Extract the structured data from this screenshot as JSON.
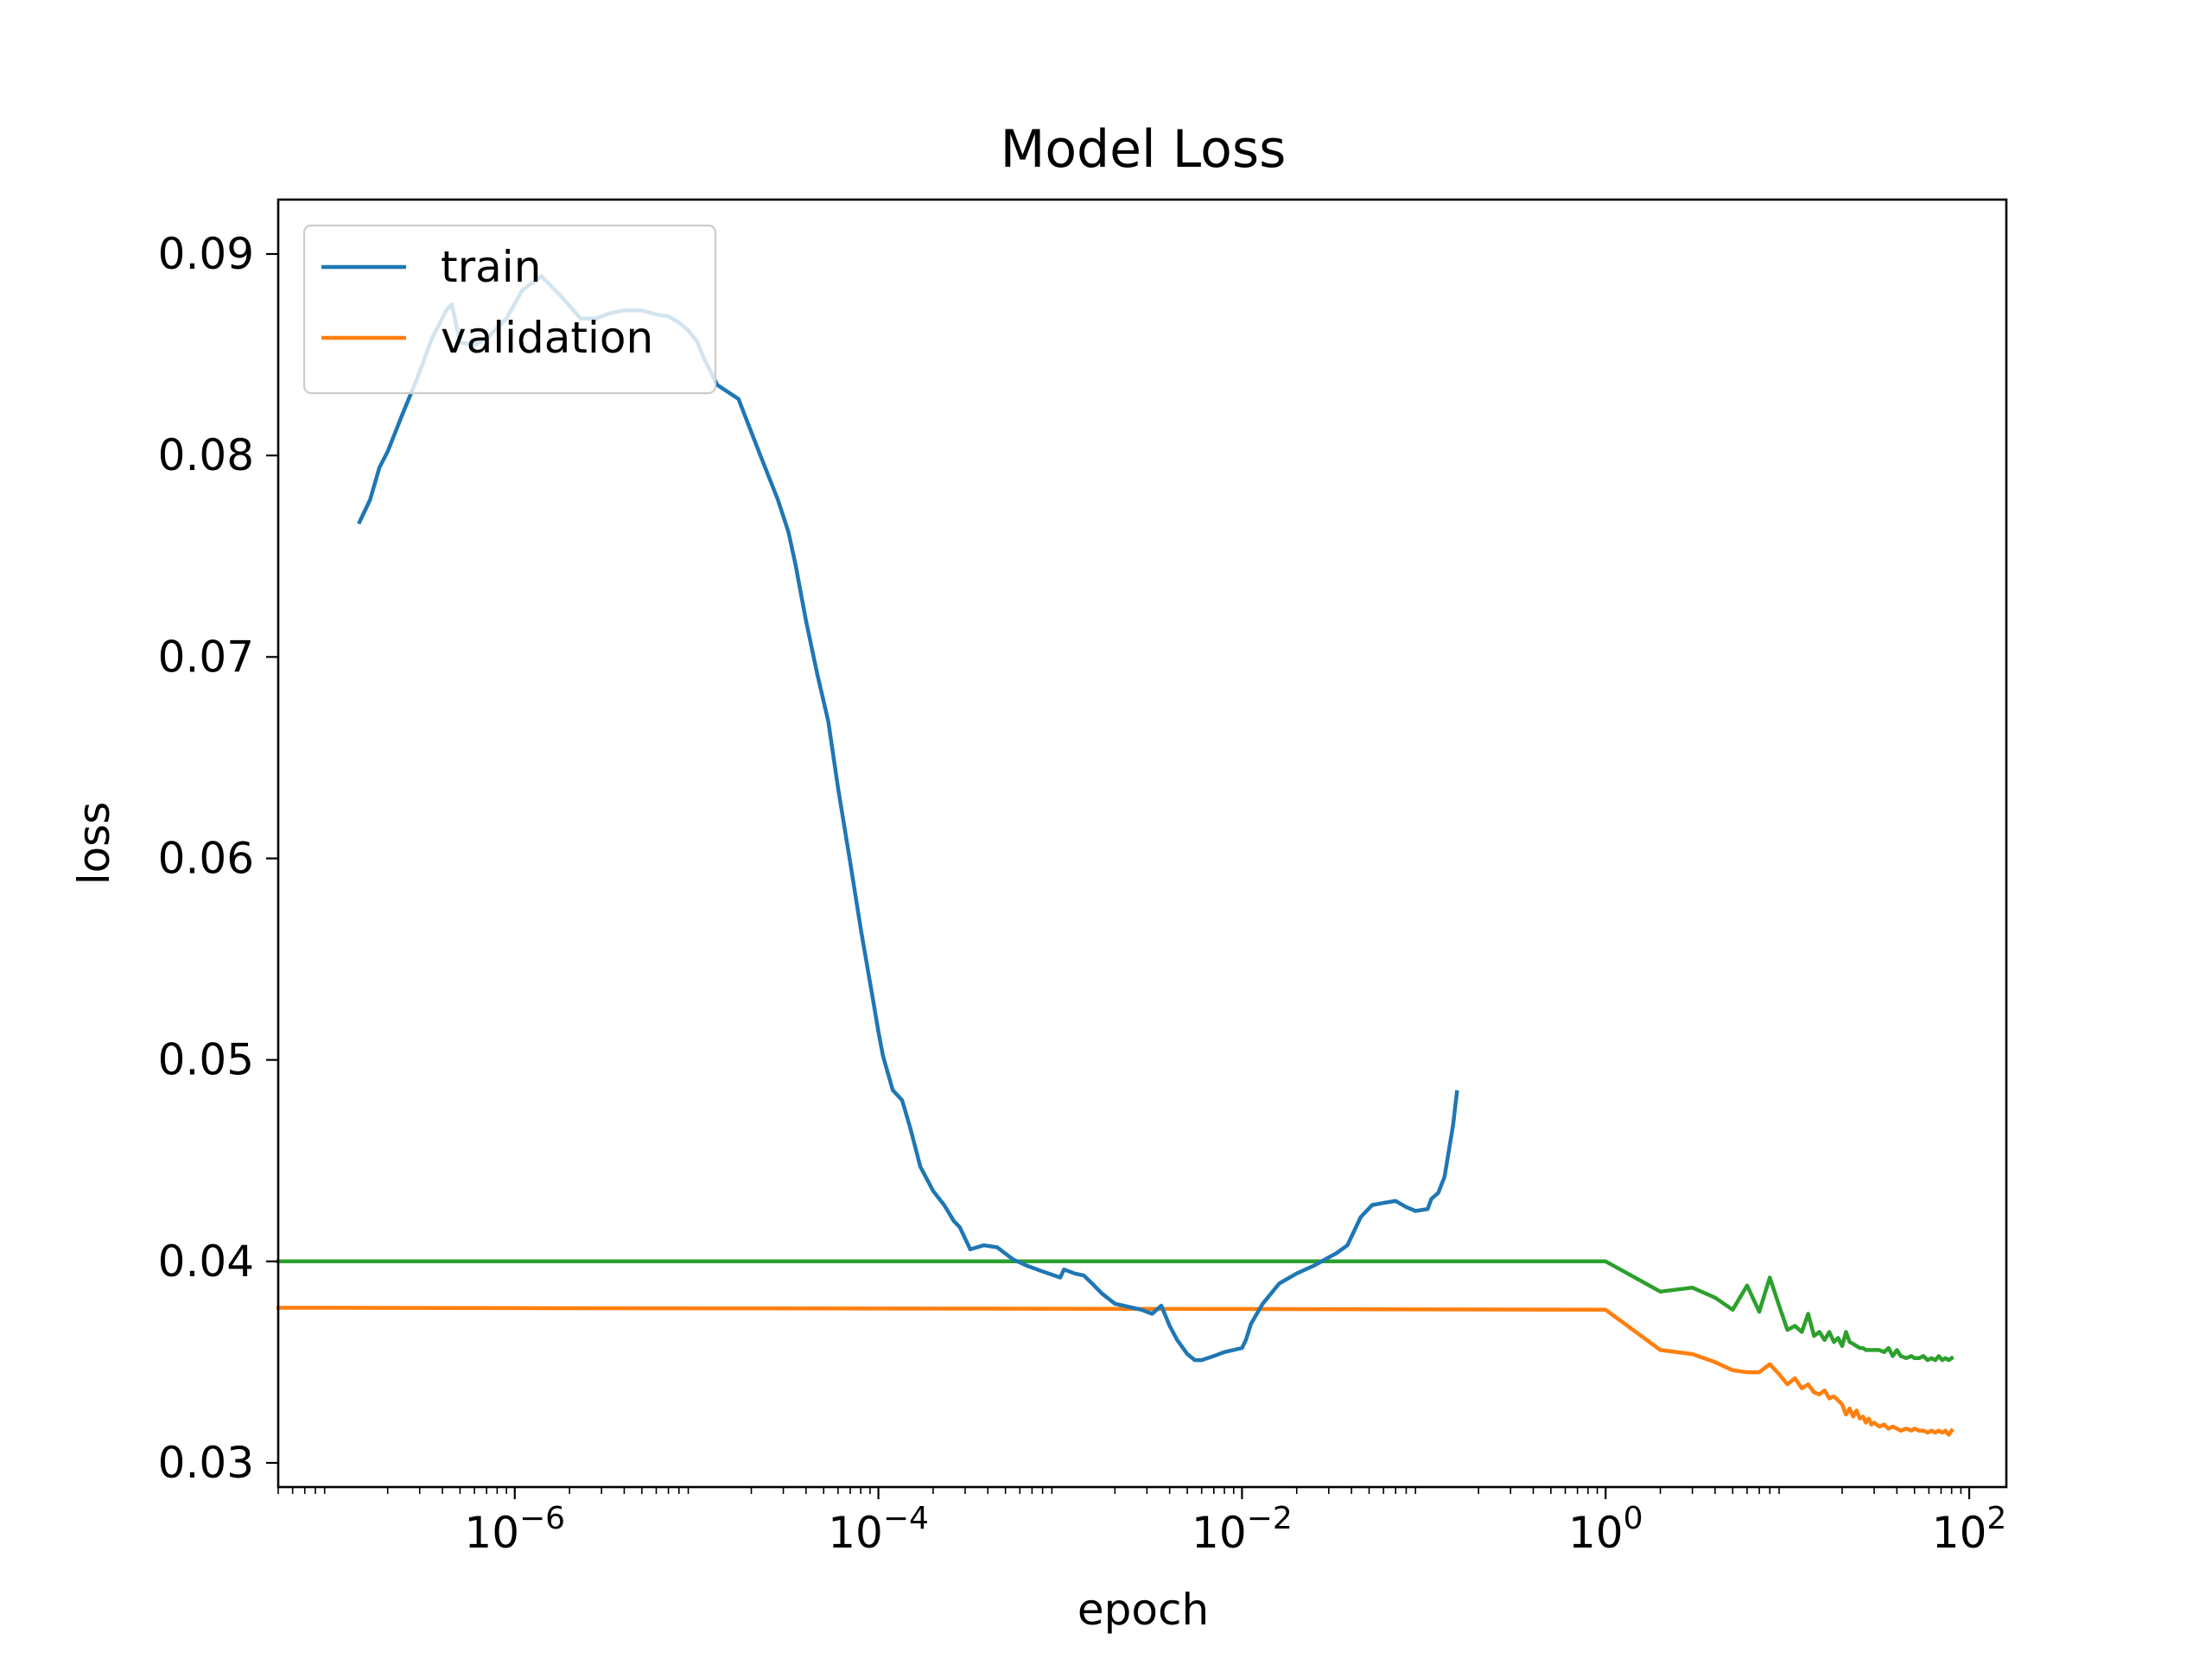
{
  "chart_data": {
    "type": "line",
    "title": "Model Loss",
    "xlabel": "epoch",
    "ylabel": "loss",
    "xscale": "log",
    "xlim": [
      5e-08,
      160
    ],
    "ylim": [
      0.0288,
      0.0927
    ],
    "xticks": [
      {
        "value": 1e-06,
        "base": "10",
        "exp": "−6"
      },
      {
        "value": 0.0001,
        "base": "10",
        "exp": "−4"
      },
      {
        "value": 0.01,
        "base": "10",
        "exp": "−2"
      },
      {
        "value": 1,
        "base": "10",
        "exp": "0"
      },
      {
        "value": 100,
        "base": "10",
        "exp": "2"
      }
    ],
    "yticks": [
      {
        "value": 0.03,
        "label": "0.03"
      },
      {
        "value": 0.04,
        "label": "0.04"
      },
      {
        "value": 0.05,
        "label": "0.05"
      },
      {
        "value": 0.06,
        "label": "0.06"
      },
      {
        "value": 0.07,
        "label": "0.07"
      },
      {
        "value": 0.08,
        "label": "0.08"
      },
      {
        "value": 0.09,
        "label": "0.09"
      }
    ],
    "grid": false,
    "legend": {
      "position": "upper left"
    },
    "series": [
      {
        "name": "train",
        "color": "#1f77b4",
        "in_legend": true,
        "x": [
          1.4e-07,
          1.6e-07,
          1.8e-07,
          2e-07,
          2.4e-07,
          2.9e-07,
          3.5e-07,
          4.2e-07,
          4.5e-07,
          5e-07,
          6e-07,
          7e-07,
          9e-07,
          1.1e-06,
          1.4e-06,
          1.8e-06,
          2.3e-06,
          2.8e-06,
          3.2e-06,
          3.5e-06,
          4e-06,
          5e-06,
          6e-06,
          7e-06,
          8e-06,
          9e-06,
          1e-05,
          1.1e-05,
          1.3e-05,
          1.7e-05,
          2.2e-05,
          2.8e-05,
          3.2e-05,
          3.5e-05,
          4e-05,
          4.6e-05,
          5.3e-05,
          6e-05,
          7e-05,
          8e-05,
          9.5e-05,
          0.0001,
          0.000106,
          0.00012,
          0.000135,
          0.00015,
          0.00017,
          0.0002,
          0.00023,
          0.00026,
          0.00028,
          0.00032,
          0.00038,
          0.00045,
          0.00055,
          0.00065,
          0.0008,
          0.001,
          0.00105,
          0.0012,
          0.00135,
          0.0015,
          0.0017,
          0.002,
          0.0025,
          0.0028,
          0.0032,
          0.0036,
          0.004,
          0.0044,
          0.005,
          0.0055,
          0.006,
          0.007,
          0.008,
          0.01,
          0.0105,
          0.0112,
          0.013,
          0.016,
          0.02,
          0.025,
          0.03,
          0.033,
          0.038,
          0.045,
          0.052,
          0.06,
          0.07,
          0.08,
          0.09,
          0.105,
          0.11,
          0.12,
          0.13,
          0.138,
          0.145,
          0.152
        ],
        "y": [
          0.0767,
          0.0778,
          0.0794,
          0.0802,
          0.082,
          0.0838,
          0.0858,
          0.0872,
          0.0875,
          0.0856,
          0.0855,
          0.0858,
          0.0868,
          0.0882,
          0.0889,
          0.0879,
          0.0868,
          0.0868,
          0.087,
          0.0871,
          0.0872,
          0.0872,
          0.087,
          0.0869,
          0.0866,
          0.0862,
          0.0857,
          0.0848,
          0.0835,
          0.0828,
          0.0802,
          0.0778,
          0.0762,
          0.0746,
          0.0718,
          0.0692,
          0.0668,
          0.0635,
          0.0598,
          0.0565,
          0.0526,
          0.0514,
          0.0502,
          0.0485,
          0.048,
          0.0466,
          0.0447,
          0.0435,
          0.0428,
          0.042,
          0.0417,
          0.0406,
          0.0408,
          0.0407,
          0.0401,
          0.0398,
          0.0395,
          0.0392,
          0.0396,
          0.0394,
          0.0393,
          0.0389,
          0.0384,
          0.0379,
          0.0377,
          0.0376,
          0.0374,
          0.0378,
          0.0368,
          0.0361,
          0.0354,
          0.0351,
          0.0351,
          0.0353,
          0.0355,
          0.0357,
          0.0361,
          0.0369,
          0.0379,
          0.0389,
          0.0394,
          0.0398,
          0.0402,
          0.0404,
          0.0408,
          0.0422,
          0.0428,
          0.0429,
          0.043,
          0.0427,
          0.0425,
          0.0426,
          0.0431,
          0.0434,
          0.0442,
          0.0456,
          0.0468,
          0.0484
        ]
      },
      {
        "name": "validation",
        "color": "#ff7f0e",
        "in_legend": true,
        "x": [
          5e-08,
          1e-07,
          1e-06,
          0.0001,
          0.01,
          1,
          2,
          3,
          4,
          5,
          6,
          7,
          8,
          9,
          10,
          11,
          12,
          13,
          14,
          15,
          16,
          17,
          18,
          19,
          20,
          21,
          22,
          23,
          24,
          25,
          26,
          27,
          28,
          29,
          30,
          32,
          34,
          36,
          38,
          40,
          42,
          45,
          48,
          50,
          53,
          56,
          59,
          62,
          65,
          68,
          71,
          74,
          77,
          80
        ],
        "y": [
          0.0377,
          0.0377,
          0.03768,
          0.03766,
          0.03764,
          0.0376,
          0.0356,
          0.0354,
          0.035,
          0.0346,
          0.0345,
          0.0345,
          0.0349,
          0.0344,
          0.0339,
          0.0342,
          0.0337,
          0.0339,
          0.0335,
          0.0334,
          0.0336,
          0.0332,
          0.0333,
          0.0331,
          0.0329,
          0.0324,
          0.0327,
          0.0323,
          0.0326,
          0.0322,
          0.0323,
          0.032,
          0.0322,
          0.0319,
          0.032,
          0.0318,
          0.0319,
          0.0317,
          0.0318,
          0.0317,
          0.0316,
          0.0317,
          0.0316,
          0.0317,
          0.0316,
          0.0316,
          0.0315,
          0.0316,
          0.0315,
          0.0316,
          0.0315,
          0.0316,
          0.0314,
          0.0316
        ]
      },
      {
        "name": "",
        "color": "#2ca02c",
        "in_legend": false,
        "x": [
          5e-08,
          1e-06,
          0.0001,
          0.01,
          1,
          2,
          3,
          4,
          5,
          6,
          7,
          8,
          9,
          10,
          11,
          12,
          13,
          14,
          15,
          16,
          17,
          18,
          19,
          20,
          21,
          22,
          23,
          24,
          25,
          26,
          27,
          28,
          29,
          30,
          32,
          34,
          36,
          38,
          40,
          42,
          45,
          48,
          50,
          53,
          56,
          59,
          62,
          65,
          68,
          71,
          74,
          77,
          80
        ],
        "y": [
          0.04,
          0.04,
          0.04,
          0.04,
          0.04,
          0.0385,
          0.0387,
          0.0382,
          0.0376,
          0.0388,
          0.0375,
          0.0392,
          0.0378,
          0.0366,
          0.0368,
          0.0365,
          0.0374,
          0.0363,
          0.0365,
          0.0361,
          0.0365,
          0.036,
          0.0362,
          0.0358,
          0.0365,
          0.036,
          0.0359,
          0.0358,
          0.0357,
          0.0357,
          0.0356,
          0.0356,
          0.0356,
          0.0356,
          0.0356,
          0.0355,
          0.0357,
          0.0353,
          0.0356,
          0.0353,
          0.0352,
          0.0353,
          0.0352,
          0.0352,
          0.0353,
          0.0351,
          0.0352,
          0.0351,
          0.0353,
          0.0351,
          0.0352,
          0.0351,
          0.0352
        ]
      }
    ]
  }
}
